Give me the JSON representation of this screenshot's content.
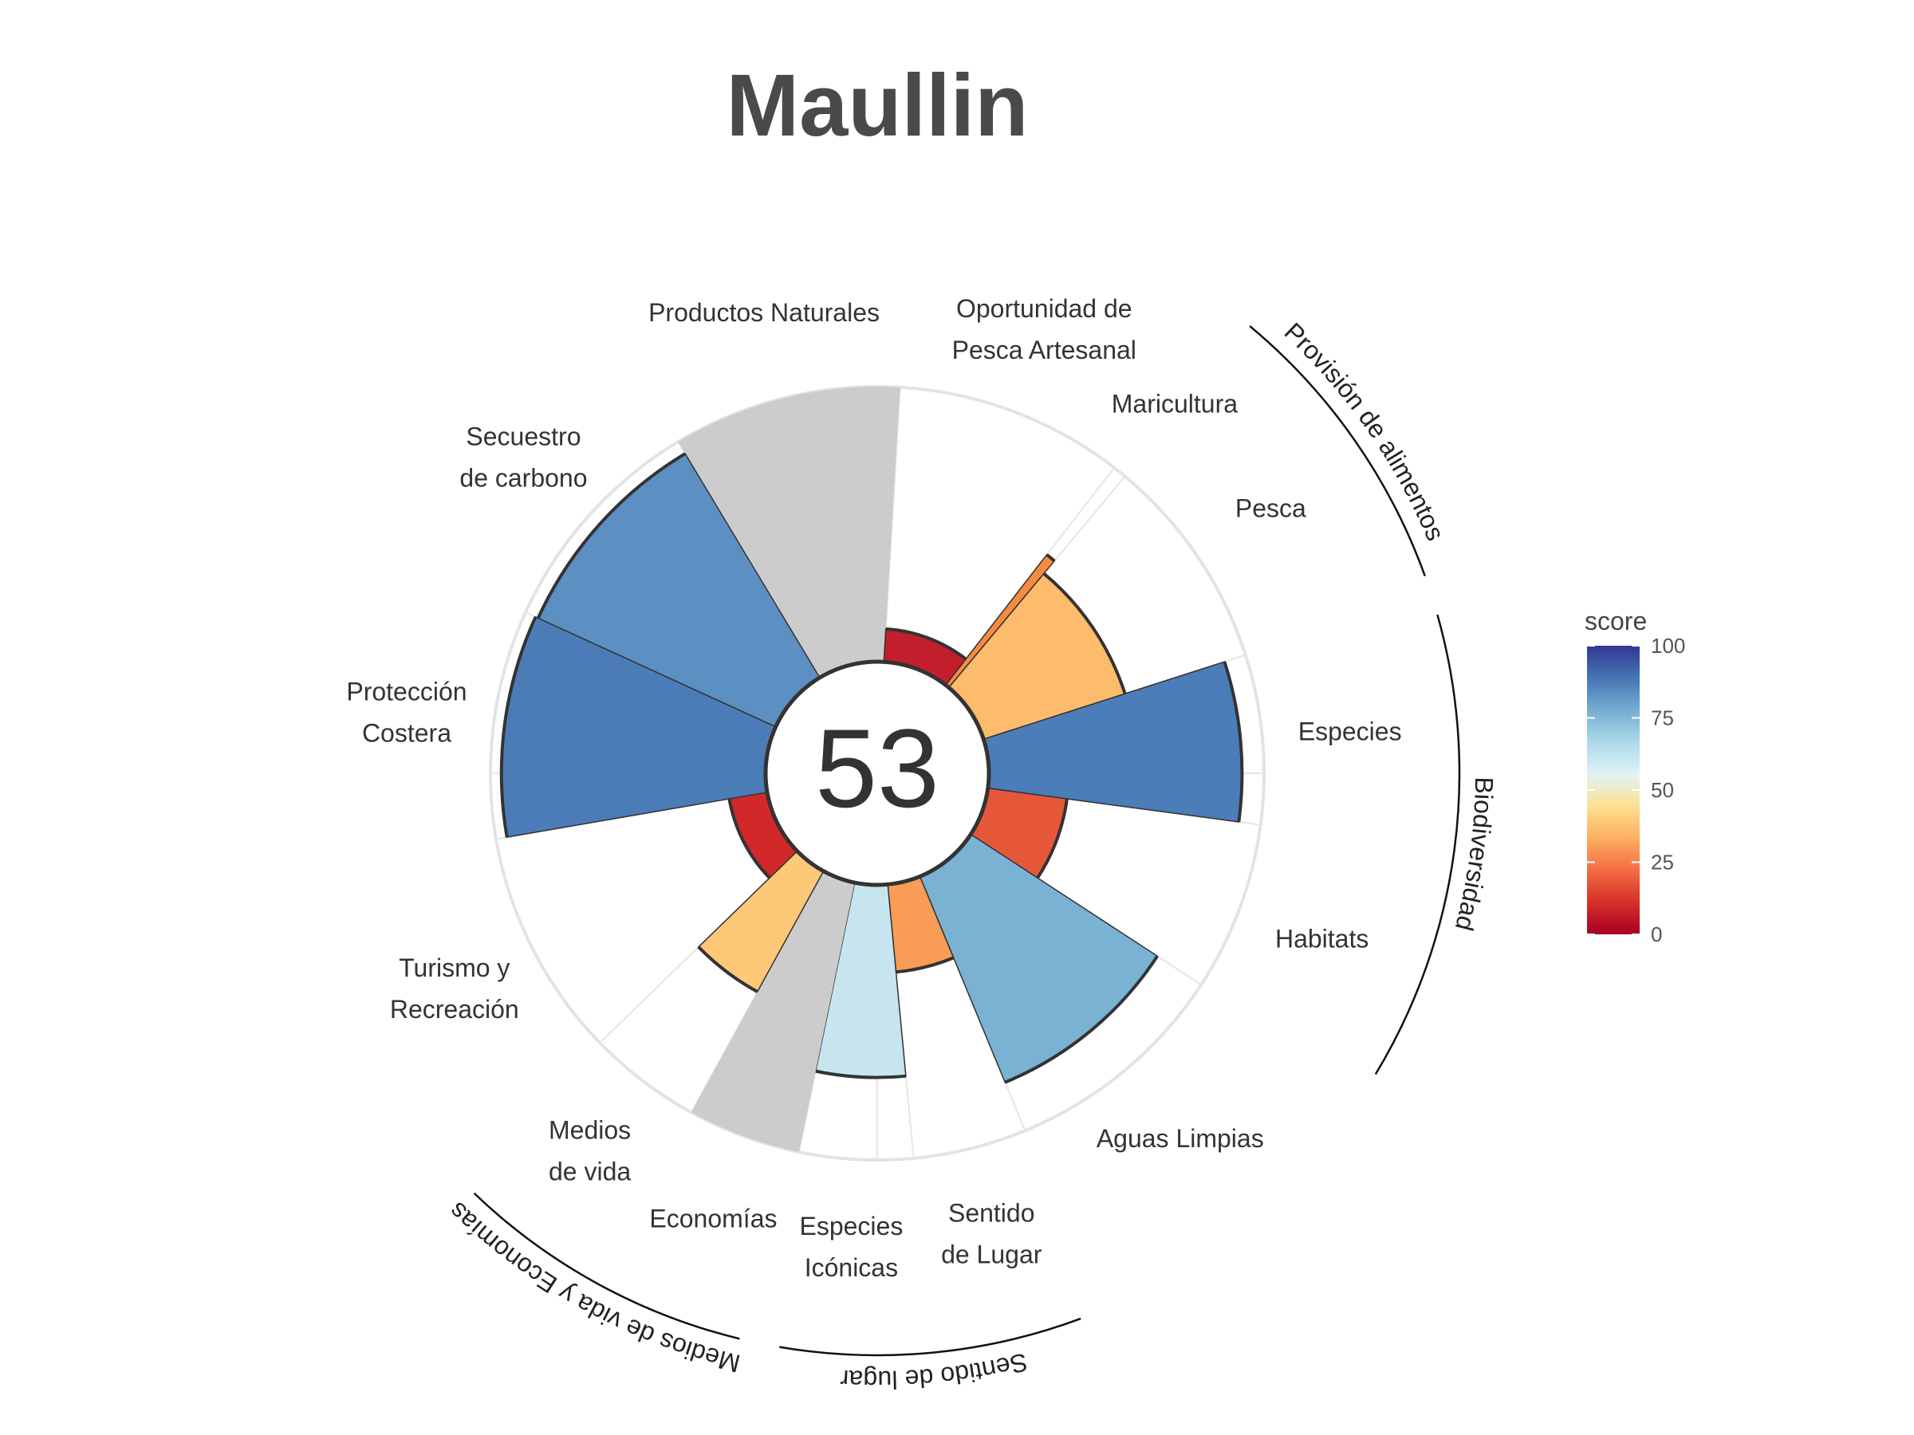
{
  "chart_data": {
    "type": "polar-bar",
    "title": "Maullin",
    "center_score": "53",
    "max_score": 100,
    "goals": [
      {
        "name": "Productos Naturales",
        "label_lines": [
          "Productos Naturales"
        ],
        "score": null,
        "weight": 1.35,
        "color": "#cccccc"
      },
      {
        "name": "Oportunidad de Pesca Artesanal",
        "label_lines": [
          "Oportunidad de",
          "Pesca Artesanal"
        ],
        "score": 12,
        "weight": 1.35,
        "color": "#c31e2b"
      },
      {
        "name": "Maricultura",
        "label_lines": [
          "Maricultura"
        ],
        "score": 60,
        "weight": 0.08,
        "color": "#f68b3f"
      },
      {
        "name": "Pesca",
        "label_lines": [
          "Pesca"
        ],
        "score": 54,
        "weight": 1.27,
        "color": "#fdbb6c"
      },
      {
        "name": "Especies",
        "label_lines": [
          "Especies"
        ],
        "score": 92,
        "weight": 1.0,
        "color": "#4b7db8"
      },
      {
        "name": "Habitats",
        "label_lines": [
          "Habitats"
        ],
        "score": 29,
        "weight": 1.0,
        "color": "#e6573a"
      },
      {
        "name": "Aguas Limpias",
        "label_lines": [
          "Aguas Limpias"
        ],
        "score": 81,
        "weight": 1.35,
        "color": "#7ab2d3"
      },
      {
        "name": "Sentido de Lugar",
        "label_lines": [
          "Sentido",
          "de Lugar"
        ],
        "score": 32,
        "weight": 0.67,
        "color": "#f99c55"
      },
      {
        "name": "Especies Icónicas",
        "label_lines": [
          "Especies",
          "Icónicas"
        ],
        "score": 70,
        "weight": 0.67,
        "color": "#c7e5ef"
      },
      {
        "name": "Economías",
        "label_lines": [
          "Economías"
        ],
        "score": null,
        "weight": 0.67,
        "color": "#cccccc"
      },
      {
        "name": "Medios de vida",
        "label_lines": [
          "Medios",
          "de vida"
        ],
        "score": 50,
        "weight": 0.67,
        "color": "#fdc877"
      },
      {
        "name": "Turismo y Recreación",
        "label_lines": [
          "Turismo y",
          "Recreación"
        ],
        "score": 14,
        "weight": 1.35,
        "color": "#d3282a"
      },
      {
        "name": "Protección Costera",
        "label_lines": [
          "Protección",
          "Costera"
        ],
        "score": 96,
        "weight": 1.35,
        "color": "#4c7cb7"
      },
      {
        "name": "Secuestro de carbono",
        "label_lines": [
          "Secuestro",
          "de carbono"
        ],
        "score": 95,
        "weight": 1.35,
        "color": "#5c8fc2"
      }
    ],
    "groups": [
      {
        "name": "Provisión de alimentos",
        "from": 2,
        "to": 3
      },
      {
        "name": "Biodiversidad",
        "from": 4,
        "to": 5
      },
      {
        "name": "Sentido de lugar",
        "from": 7,
        "to": 8
      },
      {
        "name": "Medios de vida y Economías",
        "from": 9,
        "to": 10
      }
    ],
    "legend": {
      "title": "score",
      "ticks": [
        "0",
        "25",
        "50",
        "75",
        "100"
      ],
      "colors": [
        "#a50026",
        "#d73027",
        "#f46d43",
        "#fdae61",
        "#fee090",
        "#e0f3f8",
        "#abd9e9",
        "#74add1",
        "#4575b4",
        "#313695"
      ]
    },
    "grid": true
  }
}
